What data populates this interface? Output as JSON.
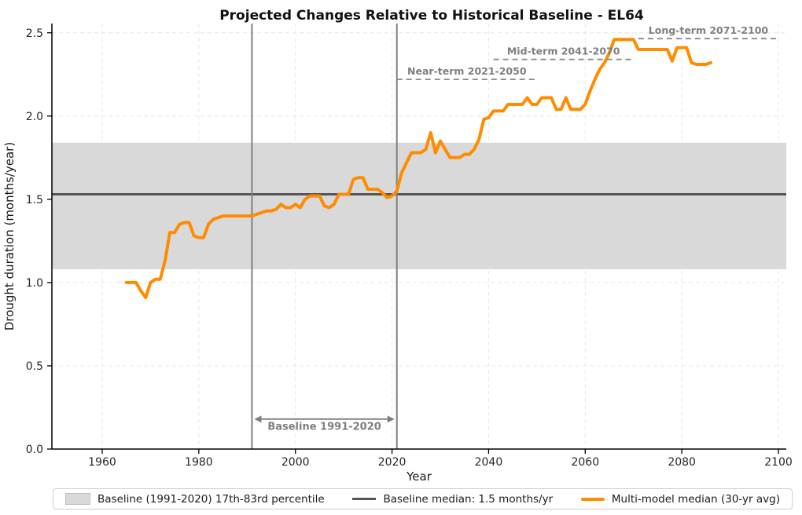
{
  "title": "Projected Changes Relative to Historical Baseline - EL64",
  "chart_data": {
    "type": "line",
    "title": "Projected Changes Relative to Historical Baseline - EL64",
    "xlabel": "Year",
    "ylabel": "Drought duration (months/year)",
    "xlim": [
      1949.5,
      2101.5
    ],
    "ylim": [
      0.0,
      2.55
    ],
    "x_ticks": [
      1960,
      1980,
      2000,
      2020,
      2040,
      2060,
      2080,
      2100
    ],
    "y_ticks": [
      0.0,
      0.5,
      1.0,
      1.5,
      2.0,
      2.5
    ],
    "grid": true,
    "grid_style": "dashed",
    "colors": {
      "series": "#FF8C00",
      "band": "#d9d9d9",
      "median_line": "#555555",
      "vline": "#808080",
      "annotation": "#7f7f7f",
      "grid": "#e8e6e4",
      "axis": "#000000",
      "tick_text": "#262626"
    },
    "baseline_band": {
      "label": "Baseline (1991-2020) 17th-83rd percentile",
      "lower": 1.08,
      "upper": 1.84
    },
    "baseline_median": {
      "label": "Baseline median: 1.5 months/yr",
      "value": 1.53
    },
    "vlines": [
      1991,
      2021
    ],
    "baseline_span": {
      "label": "Baseline 1991-2020",
      "start": 1991,
      "end": 2021,
      "arrow_level": 0.18,
      "text_level": 0.115
    },
    "period_markers": [
      {
        "label": "Near-term 2021-2050",
        "start": 2021,
        "end": 2050,
        "level": 2.22
      },
      {
        "label": "Mid-term 2041-2070",
        "start": 2041,
        "end": 2070,
        "level": 2.34
      },
      {
        "label": "Long-term 2071-2100",
        "start": 2071,
        "end": 2100,
        "level": 2.465
      }
    ],
    "series": [
      {
        "name": "Multi-model median (30-yr avg)",
        "points": [
          [
            1965,
            1.0
          ],
          [
            1966,
            1.0
          ],
          [
            1967,
            1.0
          ],
          [
            1968,
            0.95
          ],
          [
            1969,
            0.91
          ],
          [
            1970,
            1.0
          ],
          [
            1971,
            1.02
          ],
          [
            1972,
            1.02
          ],
          [
            1973,
            1.13
          ],
          [
            1974,
            1.3
          ],
          [
            1975,
            1.3
          ],
          [
            1976,
            1.35
          ],
          [
            1977,
            1.36
          ],
          [
            1978,
            1.36
          ],
          [
            1979,
            1.28
          ],
          [
            1980,
            1.27
          ],
          [
            1981,
            1.27
          ],
          [
            1982,
            1.35
          ],
          [
            1983,
            1.38
          ],
          [
            1984,
            1.39
          ],
          [
            1985,
            1.4
          ],
          [
            1986,
            1.4
          ],
          [
            1987,
            1.4
          ],
          [
            1988,
            1.4
          ],
          [
            1989,
            1.4
          ],
          [
            1990,
            1.4
          ],
          [
            1991,
            1.4
          ],
          [
            1992,
            1.41
          ],
          [
            1993,
            1.42
          ],
          [
            1994,
            1.43
          ],
          [
            1995,
            1.43
          ],
          [
            1996,
            1.44
          ],
          [
            1997,
            1.47
          ],
          [
            1998,
            1.45
          ],
          [
            1999,
            1.45
          ],
          [
            2000,
            1.47
          ],
          [
            2001,
            1.45
          ],
          [
            2002,
            1.5
          ],
          [
            2003,
            1.52
          ],
          [
            2004,
            1.52
          ],
          [
            2005,
            1.52
          ],
          [
            2006,
            1.46
          ],
          [
            2007,
            1.45
          ],
          [
            2008,
            1.47
          ],
          [
            2009,
            1.53
          ],
          [
            2010,
            1.53
          ],
          [
            2011,
            1.53
          ],
          [
            2012,
            1.62
          ],
          [
            2013,
            1.63
          ],
          [
            2014,
            1.63
          ],
          [
            2015,
            1.56
          ],
          [
            2016,
            1.56
          ],
          [
            2017,
            1.56
          ],
          [
            2018,
            1.54
          ],
          [
            2019,
            1.51
          ],
          [
            2020,
            1.52
          ],
          [
            2021,
            1.55
          ],
          [
            2022,
            1.66
          ],
          [
            2023,
            1.72
          ],
          [
            2024,
            1.78
          ],
          [
            2025,
            1.78
          ],
          [
            2026,
            1.78
          ],
          [
            2027,
            1.8
          ],
          [
            2028,
            1.9
          ],
          [
            2029,
            1.78
          ],
          [
            2030,
            1.85
          ],
          [
            2031,
            1.8
          ],
          [
            2032,
            1.75
          ],
          [
            2033,
            1.75
          ],
          [
            2034,
            1.75
          ],
          [
            2035,
            1.77
          ],
          [
            2036,
            1.77
          ],
          [
            2037,
            1.8
          ],
          [
            2038,
            1.86
          ],
          [
            2039,
            1.98
          ],
          [
            2040,
            1.99
          ],
          [
            2041,
            2.03
          ],
          [
            2042,
            2.03
          ],
          [
            2043,
            2.03
          ],
          [
            2044,
            2.07
          ],
          [
            2045,
            2.07
          ],
          [
            2046,
            2.07
          ],
          [
            2047,
            2.07
          ],
          [
            2048,
            2.11
          ],
          [
            2049,
            2.07
          ],
          [
            2050,
            2.07
          ],
          [
            2051,
            2.11
          ],
          [
            2052,
            2.11
          ],
          [
            2053,
            2.11
          ],
          [
            2054,
            2.04
          ],
          [
            2055,
            2.04
          ],
          [
            2056,
            2.11
          ],
          [
            2057,
            2.04
          ],
          [
            2058,
            2.04
          ],
          [
            2059,
            2.04
          ],
          [
            2060,
            2.07
          ],
          [
            2061,
            2.15
          ],
          [
            2062,
            2.22
          ],
          [
            2063,
            2.28
          ],
          [
            2064,
            2.32
          ],
          [
            2065,
            2.38
          ],
          [
            2066,
            2.46
          ],
          [
            2067,
            2.46
          ],
          [
            2068,
            2.46
          ],
          [
            2069,
            2.46
          ],
          [
            2070,
            2.46
          ],
          [
            2071,
            2.4
          ],
          [
            2072,
            2.4
          ],
          [
            2073,
            2.4
          ],
          [
            2074,
            2.4
          ],
          [
            2075,
            2.4
          ],
          [
            2076,
            2.4
          ],
          [
            2077,
            2.4
          ],
          [
            2078,
            2.33
          ],
          [
            2079,
            2.41
          ],
          [
            2080,
            2.41
          ],
          [
            2081,
            2.41
          ],
          [
            2082,
            2.32
          ],
          [
            2083,
            2.31
          ],
          [
            2084,
            2.31
          ],
          [
            2085,
            2.31
          ],
          [
            2086,
            2.32
          ]
        ]
      }
    ],
    "legend": {
      "position": "bottom",
      "entries": [
        {
          "swatch": "patch",
          "label": "Baseline (1991-2020) 17th-83rd percentile"
        },
        {
          "swatch": "line-gray",
          "label": "Baseline median: 1.5 months/yr"
        },
        {
          "swatch": "line-orange",
          "label": "Multi-model median (30-yr avg)"
        }
      ]
    }
  }
}
